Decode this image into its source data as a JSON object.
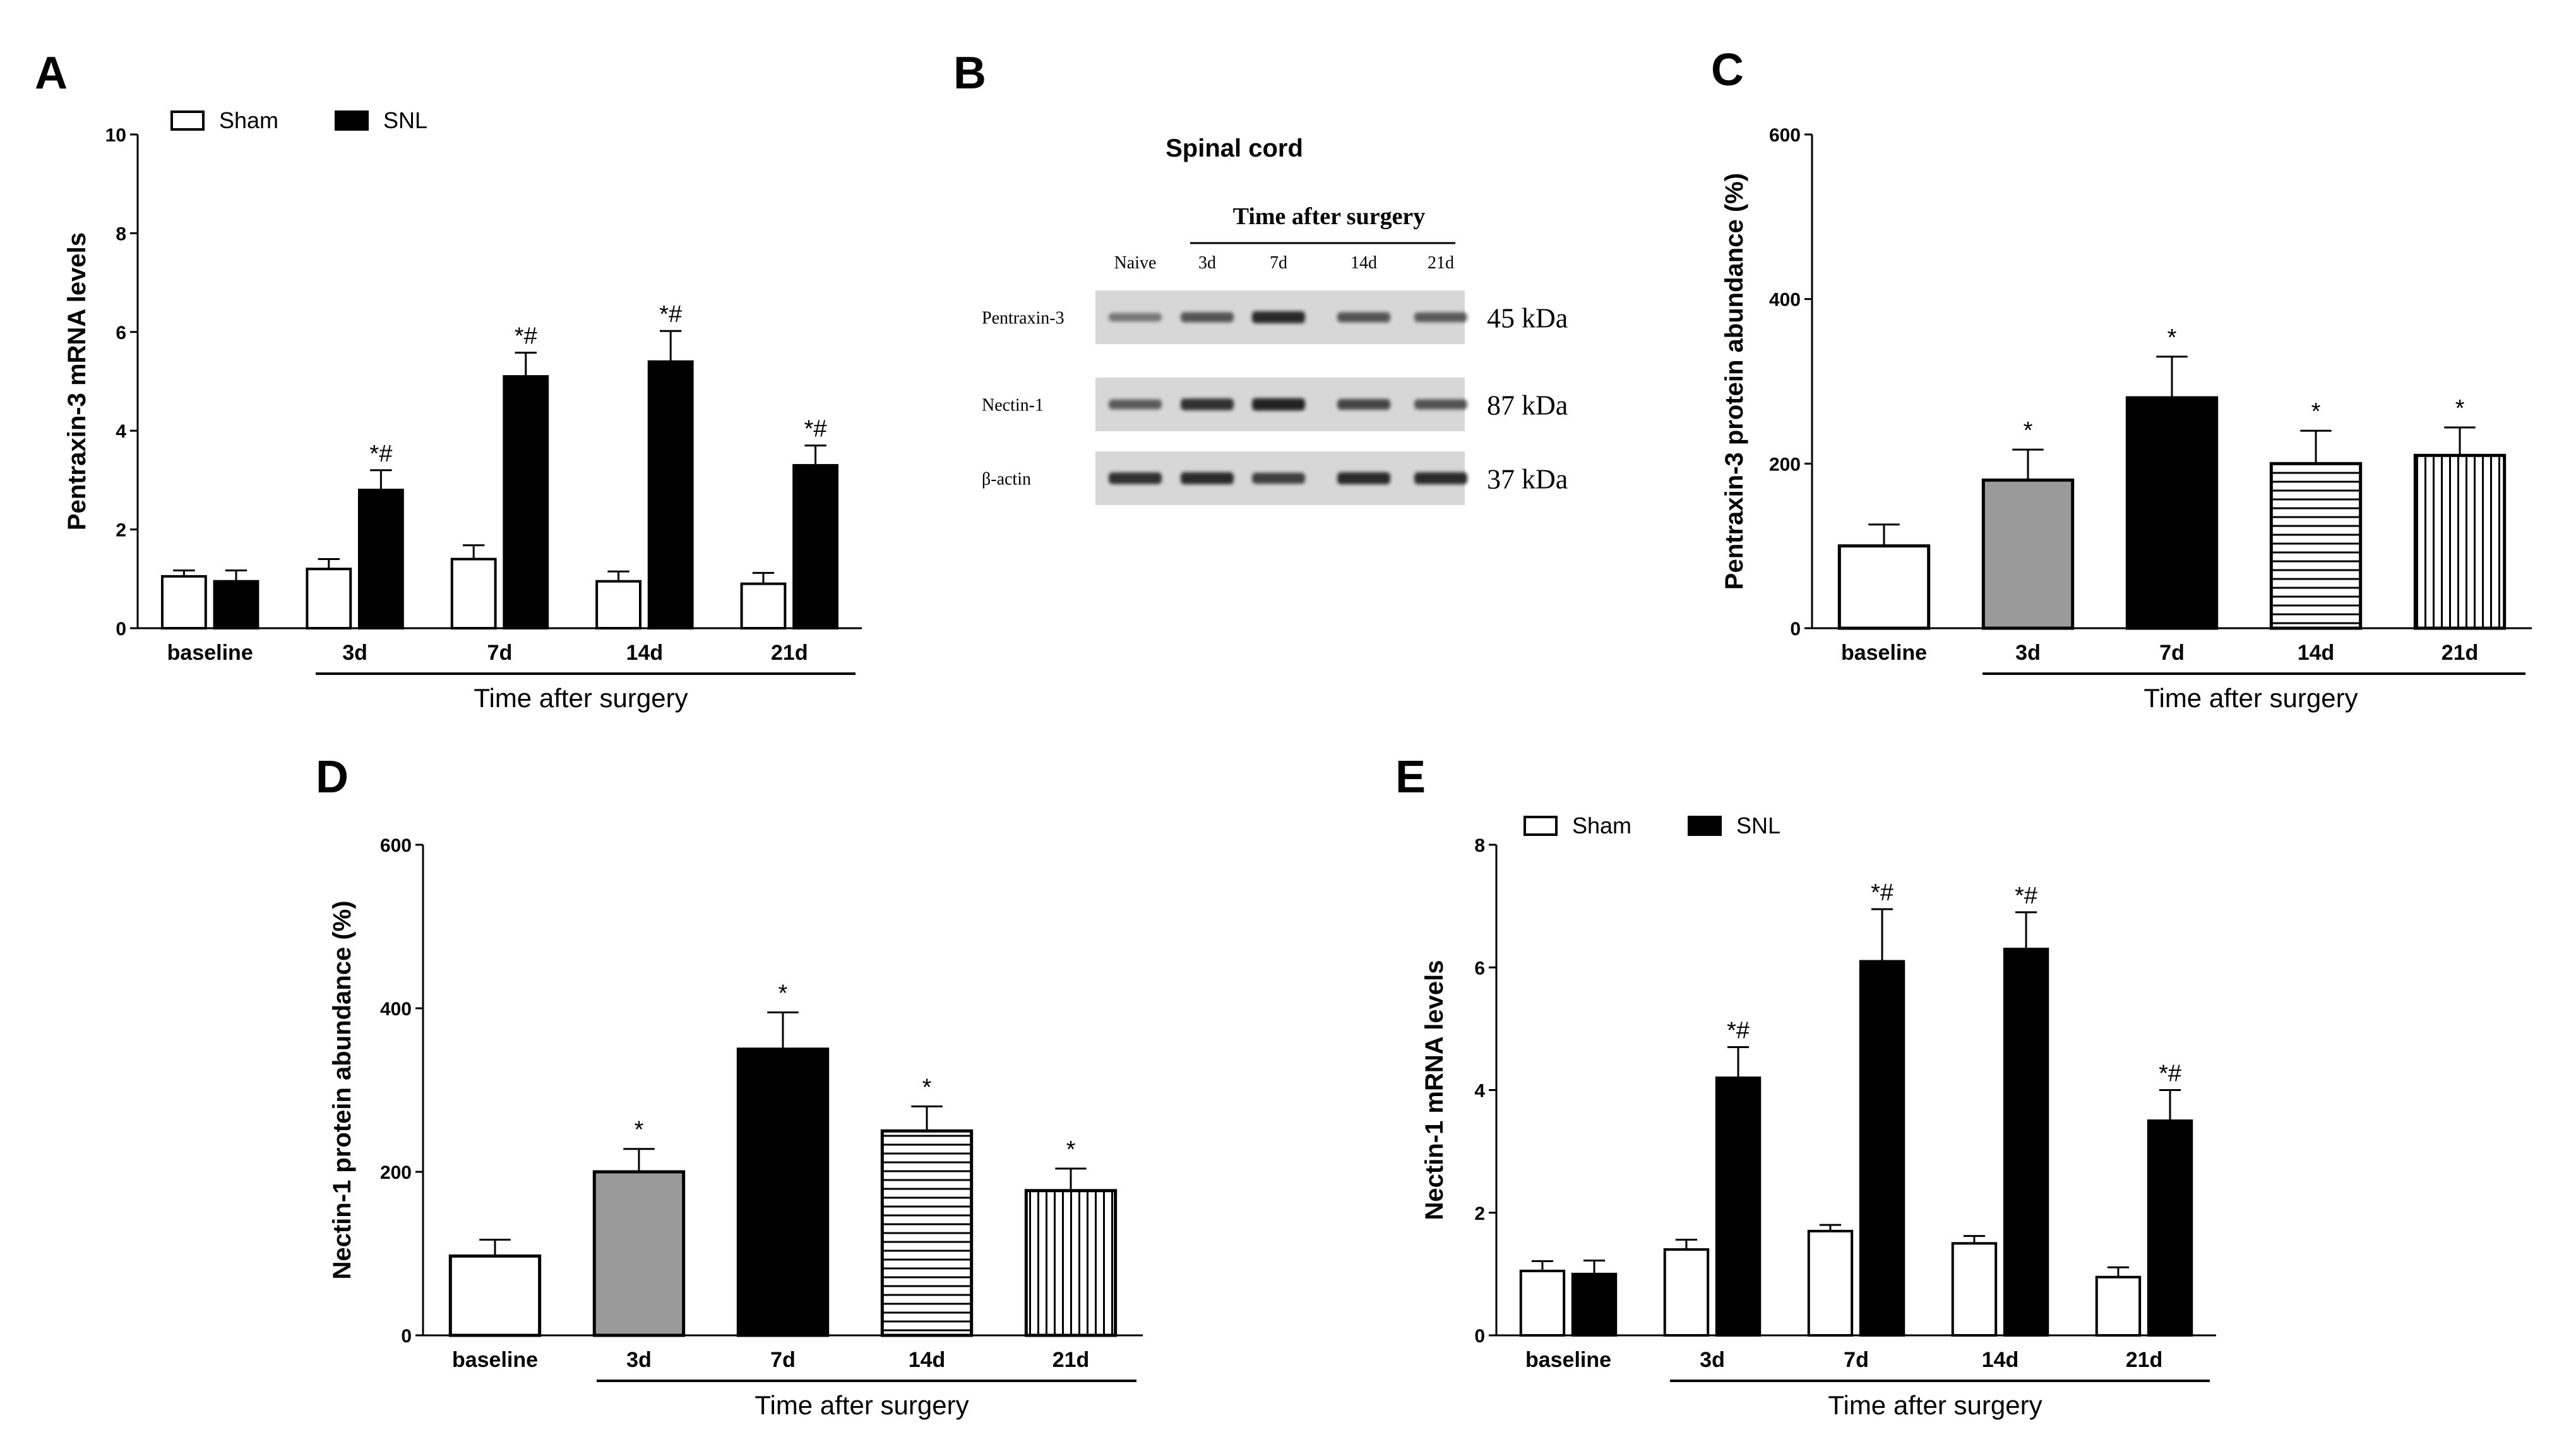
{
  "chart_data": [
    {
      "panel": "A",
      "type": "bar",
      "ylabel": "Pentraxin-3 mRNA levels",
      "xlabel": "Time after surgery",
      "ylim": [
        0,
        10
      ],
      "yticks": [
        0,
        2,
        4,
        6,
        8,
        10
      ],
      "categories": [
        "baseline",
        "3d",
        "7d",
        "14d",
        "21d"
      ],
      "series": [
        {
          "name": "Sham",
          "fill": "#ffffff",
          "values": [
            1.05,
            1.2,
            1.4,
            0.95,
            0.9
          ],
          "errors": [
            0.12,
            0.2,
            0.28,
            0.2,
            0.22
          ]
        },
        {
          "name": "SNL",
          "fill": "#000000",
          "values": [
            0.95,
            2.8,
            5.1,
            5.4,
            3.3
          ],
          "errors": [
            0.22,
            0.4,
            0.48,
            0.62,
            0.4
          ]
        }
      ],
      "annotations": [
        [
          "",
          ""
        ],
        [
          "",
          "*#"
        ],
        [
          "",
          "*#"
        ],
        [
          "",
          "*#"
        ],
        [
          "",
          "*#"
        ]
      ]
    },
    {
      "panel": "C",
      "type": "bar",
      "ylabel": "Pentraxin-3 protein abundance (%)",
      "xlabel": "Time after surgery",
      "ylim": [
        0,
        600
      ],
      "yticks": [
        0,
        200,
        400,
        600
      ],
      "categories": [
        "baseline",
        "3d",
        "7d",
        "14d",
        "21d"
      ],
      "fills": [
        "white",
        "gray",
        "black",
        "hstripe",
        "vstripe"
      ],
      "values": [
        100,
        180,
        280,
        200,
        210
      ],
      "errors": [
        26,
        37,
        50,
        40,
        34
      ],
      "annotations": [
        "",
        "*",
        "*",
        "*",
        "*"
      ]
    },
    {
      "panel": "D",
      "type": "bar",
      "ylabel": "Nectin-1 protein abundance (%)",
      "xlabel": "Time after surgery",
      "ylim": [
        0,
        600
      ],
      "yticks": [
        0,
        200,
        400,
        600
      ],
      "categories": [
        "baseline",
        "3d",
        "7d",
        "14d",
        "21d"
      ],
      "fills": [
        "white",
        "gray",
        "black",
        "hstripe",
        "vstripe"
      ],
      "values": [
        97,
        200,
        350,
        250,
        177
      ],
      "errors": [
        20,
        28,
        45,
        30,
        27
      ],
      "annotations": [
        "",
        "*",
        "*",
        "*",
        "*"
      ]
    },
    {
      "panel": "E",
      "type": "bar",
      "ylabel": "Nectin-1 mRNA levels",
      "xlabel": "Time after surgery",
      "ylim": [
        0,
        8
      ],
      "yticks": [
        0,
        2,
        4,
        6,
        8
      ],
      "categories": [
        "baseline",
        "3d",
        "7d",
        "14d",
        "21d"
      ],
      "series": [
        {
          "name": "Sham",
          "fill": "#ffffff",
          "values": [
            1.05,
            1.4,
            1.7,
            1.5,
            0.95
          ],
          "errors": [
            0.16,
            0.16,
            0.1,
            0.12,
            0.16
          ]
        },
        {
          "name": "SNL",
          "fill": "#000000",
          "values": [
            1.0,
            4.2,
            6.1,
            6.3,
            3.5
          ],
          "errors": [
            0.22,
            0.5,
            0.85,
            0.6,
            0.5
          ]
        }
      ],
      "annotations": [
        [
          "",
          ""
        ],
        [
          "",
          "*#"
        ],
        [
          "",
          "*#"
        ],
        [
          "",
          "*#"
        ],
        [
          "",
          "*#"
        ]
      ]
    }
  ],
  "panel_labels": {
    "a": "A",
    "b": "B",
    "c": "C",
    "d": "D",
    "e": "E"
  },
  "blot": {
    "title": "Spinal cord",
    "header": "Time after surgery",
    "lanes": [
      "Naive",
      "3d",
      "7d",
      "14d",
      "21d"
    ],
    "rows": [
      {
        "label": "Pentraxin-3",
        "size": "45 kDa",
        "intensity": [
          0.35,
          0.6,
          0.9,
          0.6,
          0.55
        ]
      },
      {
        "label": "Nectin-1",
        "size": "87 kDa",
        "intensity": [
          0.55,
          0.85,
          0.95,
          0.7,
          0.6
        ]
      },
      {
        "label": "β-actin",
        "size": "37 kDa",
        "intensity": [
          0.85,
          0.9,
          0.75,
          0.9,
          0.9
        ]
      }
    ]
  },
  "colors": {
    "gray_bar": "#9a9a9a",
    "black": "#000000",
    "white": "#ffffff",
    "blot_bg": "#d7d7d7",
    "band": "#1a1a1a"
  }
}
